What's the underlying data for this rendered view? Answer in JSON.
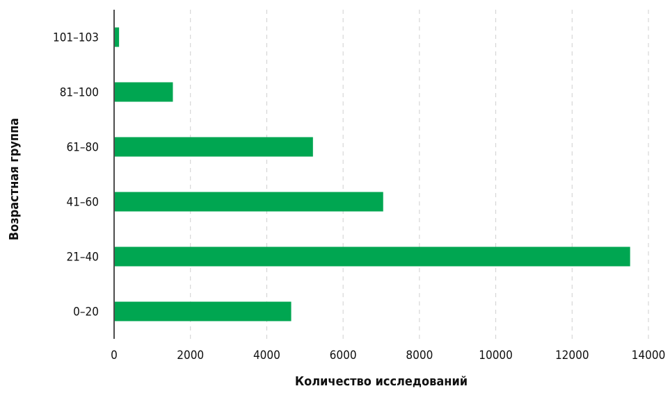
{
  "chart_data": {
    "type": "bar",
    "orientation": "horizontal",
    "categories": [
      "0–20",
      "21–40",
      "41–60",
      "61–80",
      "81–100",
      "101–103"
    ],
    "values": [
      4640,
      13520,
      7050,
      5210,
      1540,
      130
    ],
    "xlabel": "Количество исследований",
    "ylabel": "Возрастная группа",
    "xlim": [
      0,
      14000
    ],
    "xticks": [
      "0",
      "2000",
      "4000",
      "6000",
      "8000",
      "10000",
      "12000",
      "14000"
    ],
    "grid": "vertical-dashed",
    "bar_color": "#00a651"
  }
}
